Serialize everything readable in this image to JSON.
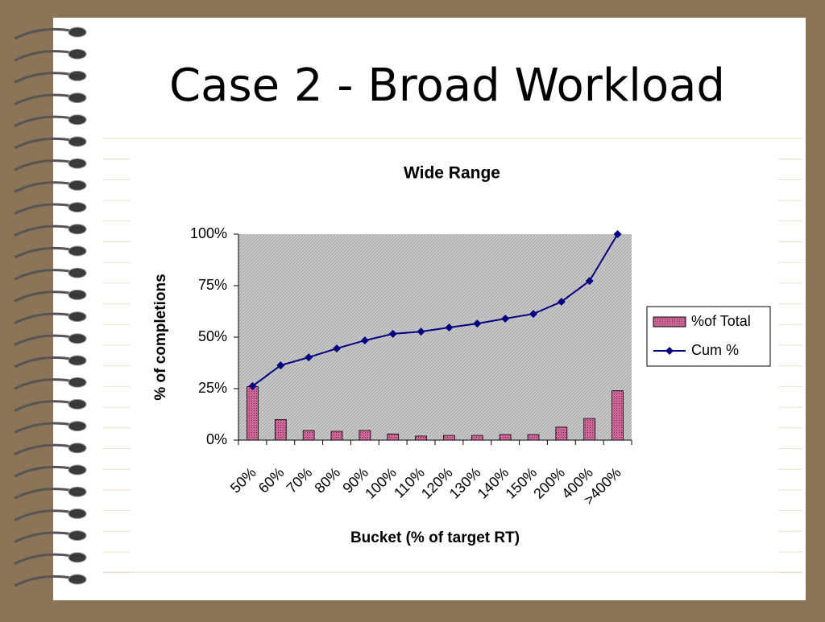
{
  "slide_title": "Case 2 - Broad Workload",
  "chart_data": {
    "type": "bar_line",
    "title": "Wide Range",
    "x_label": "Bucket (% of target RT)",
    "y_label": "% of completions",
    "categories": [
      "50%",
      "60%",
      "70%",
      "80%",
      "90%",
      "100%",
      "110%",
      "120%",
      "130%",
      "140%",
      "150%",
      "200%",
      "400%",
      ">400%"
    ],
    "series": [
      {
        "name": "%of Total",
        "type": "bar",
        "color": "#cc6699",
        "values": [
          26,
          10,
          4.7,
          4.3,
          4.7,
          3,
          2,
          2.3,
          2.3,
          2.7,
          2.7,
          6.3,
          10.5,
          24
        ]
      },
      {
        "name": "Cum %",
        "type": "line",
        "color": "#000080",
        "values": [
          26.2,
          36.3,
          40.2,
          44.5,
          48.4,
          51.6,
          52.7,
          54.7,
          56.6,
          59,
          61.3,
          67.2,
          77.3,
          100
        ]
      }
    ],
    "ylim": [
      0,
      100
    ],
    "yticks": [
      {
        "value": 0,
        "label": "0%"
      },
      {
        "value": 25,
        "label": "25%"
      },
      {
        "value": 50,
        "label": "50%"
      },
      {
        "value": 75,
        "label": "75%"
      },
      {
        "value": 100,
        "label": "100%"
      }
    ],
    "legend": "right"
  }
}
